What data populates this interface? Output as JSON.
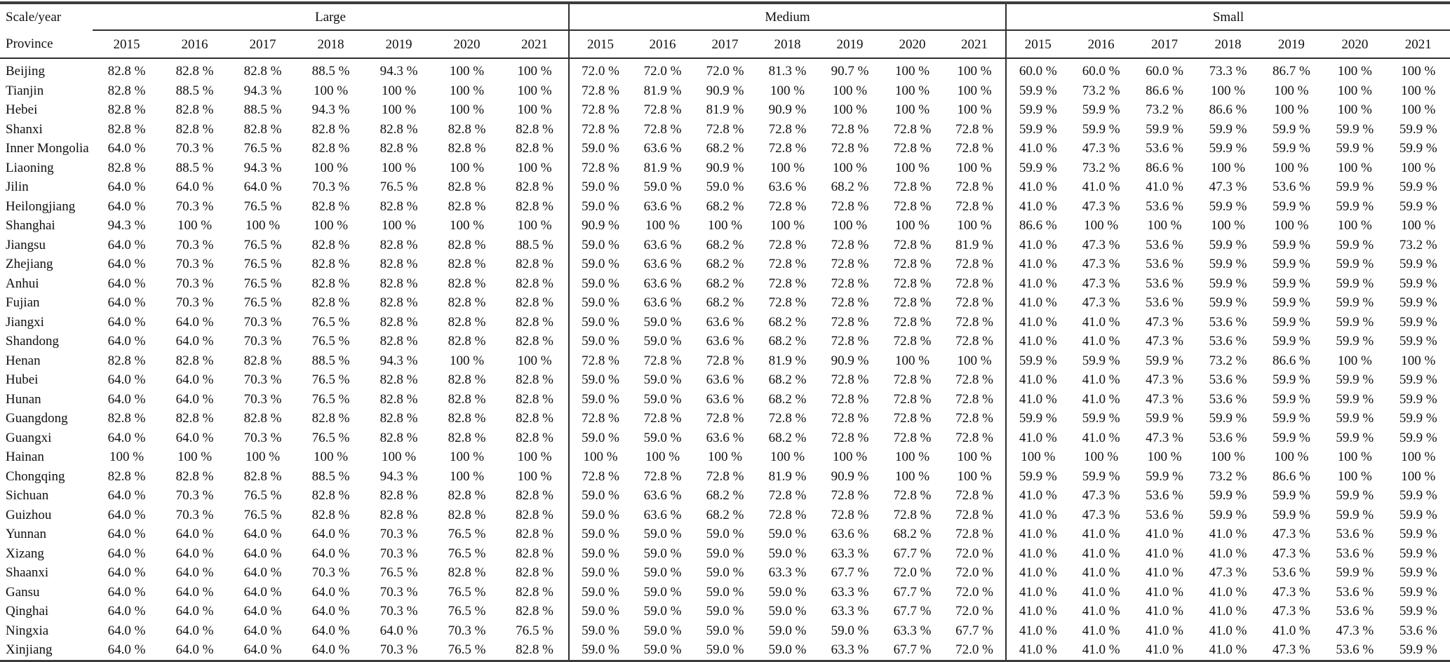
{
  "header": {
    "corner_top": "Scale/year",
    "corner_bottom": "Province",
    "groups": [
      "Large",
      "Medium",
      "Small"
    ],
    "years": [
      "2015",
      "2016",
      "2017",
      "2018",
      "2019",
      "2020",
      "2021"
    ]
  },
  "rows": [
    {
      "province": "Beijing",
      "values": [
        "82.8 %",
        "82.8 %",
        "82.8 %",
        "88.5 %",
        "94.3 %",
        "100 %",
        "100 %",
        "72.0 %",
        "72.0 %",
        "72.0 %",
        "81.3 %",
        "90.7 %",
        "100 %",
        "100 %",
        "60.0 %",
        "60.0 %",
        "60.0 %",
        "73.3 %",
        "86.7 %",
        "100 %",
        "100 %"
      ]
    },
    {
      "province": "Tianjin",
      "values": [
        "82.8 %",
        "88.5 %",
        "94.3 %",
        "100 %",
        "100 %",
        "100 %",
        "100 %",
        "72.8 %",
        "81.9 %",
        "90.9 %",
        "100 %",
        "100 %",
        "100 %",
        "100 %",
        "59.9 %",
        "73.2 %",
        "86.6 %",
        "100 %",
        "100 %",
        "100 %",
        "100 %"
      ]
    },
    {
      "province": "Hebei",
      "values": [
        "82.8 %",
        "82.8 %",
        "88.5 %",
        "94.3 %",
        "100 %",
        "100 %",
        "100 %",
        "72.8 %",
        "72.8 %",
        "81.9 %",
        "90.9 %",
        "100 %",
        "100 %",
        "100 %",
        "59.9 %",
        "59.9 %",
        "73.2 %",
        "86.6 %",
        "100 %",
        "100 %",
        "100 %"
      ]
    },
    {
      "province": "Shanxi",
      "values": [
        "82.8 %",
        "82.8 %",
        "82.8 %",
        "82.8 %",
        "82.8 %",
        "82.8 %",
        "82.8 %",
        "72.8 %",
        "72.8 %",
        "72.8 %",
        "72.8 %",
        "72.8 %",
        "72.8 %",
        "72.8 %",
        "59.9 %",
        "59.9 %",
        "59.9 %",
        "59.9 %",
        "59.9 %",
        "59.9 %",
        "59.9 %"
      ]
    },
    {
      "province": "Inner Mongolia",
      "values": [
        "64.0 %",
        "70.3 %",
        "76.5 %",
        "82.8 %",
        "82.8 %",
        "82.8 %",
        "82.8 %",
        "59.0 %",
        "63.6 %",
        "68.2 %",
        "72.8 %",
        "72.8 %",
        "72.8 %",
        "72.8 %",
        "41.0 %",
        "47.3 %",
        "53.6 %",
        "59.9 %",
        "59.9 %",
        "59.9 %",
        "59.9 %"
      ]
    },
    {
      "province": "Liaoning",
      "values": [
        "82.8 %",
        "88.5 %",
        "94.3 %",
        "100 %",
        "100 %",
        "100 %",
        "100 %",
        "72.8 %",
        "81.9 %",
        "90.9 %",
        "100 %",
        "100 %",
        "100 %",
        "100 %",
        "59.9 %",
        "73.2 %",
        "86.6 %",
        "100 %",
        "100 %",
        "100 %",
        "100 %"
      ]
    },
    {
      "province": "Jilin",
      "values": [
        "64.0 %",
        "64.0 %",
        "64.0 %",
        "70.3 %",
        "76.5 %",
        "82.8 %",
        "82.8 %",
        "59.0 %",
        "59.0 %",
        "59.0 %",
        "63.6 %",
        "68.2 %",
        "72.8 %",
        "72.8 %",
        "41.0 %",
        "41.0 %",
        "41.0 %",
        "47.3 %",
        "53.6 %",
        "59.9 %",
        "59.9 %"
      ]
    },
    {
      "province": "Heilongjiang",
      "values": [
        "64.0 %",
        "70.3 %",
        "76.5 %",
        "82.8 %",
        "82.8 %",
        "82.8 %",
        "82.8 %",
        "59.0 %",
        "63.6 %",
        "68.2 %",
        "72.8 %",
        "72.8 %",
        "72.8 %",
        "72.8 %",
        "41.0 %",
        "47.3 %",
        "53.6 %",
        "59.9 %",
        "59.9 %",
        "59.9 %",
        "59.9 %"
      ]
    },
    {
      "province": "Shanghai",
      "values": [
        "94.3 %",
        "100 %",
        "100 %",
        "100 %",
        "100 %",
        "100 %",
        "100 %",
        "90.9 %",
        "100 %",
        "100 %",
        "100 %",
        "100 %",
        "100 %",
        "100 %",
        "86.6 %",
        "100 %",
        "100 %",
        "100 %",
        "100 %",
        "100 %",
        "100 %"
      ]
    },
    {
      "province": "Jiangsu",
      "values": [
        "64.0 %",
        "70.3 %",
        "76.5 %",
        "82.8 %",
        "82.8 %",
        "82.8 %",
        "88.5 %",
        "59.0 %",
        "63.6 %",
        "68.2 %",
        "72.8 %",
        "72.8 %",
        "72.8 %",
        "81.9 %",
        "41.0 %",
        "47.3 %",
        "53.6 %",
        "59.9 %",
        "59.9 %",
        "59.9 %",
        "73.2 %"
      ]
    },
    {
      "province": "Zhejiang",
      "values": [
        "64.0 %",
        "70.3 %",
        "76.5 %",
        "82.8 %",
        "82.8 %",
        "82.8 %",
        "82.8 %",
        "59.0 %",
        "63.6 %",
        "68.2 %",
        "72.8 %",
        "72.8 %",
        "72.8 %",
        "72.8 %",
        "41.0 %",
        "47.3 %",
        "53.6 %",
        "59.9 %",
        "59.9 %",
        "59.9 %",
        "59.9 %"
      ]
    },
    {
      "province": "Anhui",
      "values": [
        "64.0 %",
        "70.3 %",
        "76.5 %",
        "82.8 %",
        "82.8 %",
        "82.8 %",
        "82.8 %",
        "59.0 %",
        "63.6 %",
        "68.2 %",
        "72.8 %",
        "72.8 %",
        "72.8 %",
        "72.8 %",
        "41.0 %",
        "47.3 %",
        "53.6 %",
        "59.9 %",
        "59.9 %",
        "59.9 %",
        "59.9 %"
      ]
    },
    {
      "province": "Fujian",
      "values": [
        "64.0 %",
        "70.3 %",
        "76.5 %",
        "82.8 %",
        "82.8 %",
        "82.8 %",
        "82.8 %",
        "59.0 %",
        "63.6 %",
        "68.2 %",
        "72.8 %",
        "72.8 %",
        "72.8 %",
        "72.8 %",
        "41.0 %",
        "47.3 %",
        "53.6 %",
        "59.9 %",
        "59.9 %",
        "59.9 %",
        "59.9 %"
      ]
    },
    {
      "province": "Jiangxi",
      "values": [
        "64.0 %",
        "64.0 %",
        "70.3 %",
        "76.5 %",
        "82.8 %",
        "82.8 %",
        "82.8 %",
        "59.0 %",
        "59.0 %",
        "63.6 %",
        "68.2 %",
        "72.8 %",
        "72.8 %",
        "72.8 %",
        "41.0 %",
        "41.0 %",
        "47.3 %",
        "53.6 %",
        "59.9 %",
        "59.9 %",
        "59.9 %"
      ]
    },
    {
      "province": "Shandong",
      "values": [
        "64.0 %",
        "64.0 %",
        "70.3 %",
        "76.5 %",
        "82.8 %",
        "82.8 %",
        "82.8 %",
        "59.0 %",
        "59.0 %",
        "63.6 %",
        "68.2 %",
        "72.8 %",
        "72.8 %",
        "72.8 %",
        "41.0 %",
        "41.0 %",
        "47.3 %",
        "53.6 %",
        "59.9 %",
        "59.9 %",
        "59.9 %"
      ]
    },
    {
      "province": "Henan",
      "values": [
        "82.8 %",
        "82.8 %",
        "82.8 %",
        "88.5 %",
        "94.3 %",
        "100 %",
        "100 %",
        "72.8 %",
        "72.8 %",
        "72.8 %",
        "81.9 %",
        "90.9 %",
        "100 %",
        "100 %",
        "59.9 %",
        "59.9 %",
        "59.9 %",
        "73.2 %",
        "86.6 %",
        "100 %",
        "100 %"
      ]
    },
    {
      "province": "Hubei",
      "values": [
        "64.0 %",
        "64.0 %",
        "70.3 %",
        "76.5 %",
        "82.8 %",
        "82.8 %",
        "82.8 %",
        "59.0 %",
        "59.0 %",
        "63.6 %",
        "68.2 %",
        "72.8 %",
        "72.8 %",
        "72.8 %",
        "41.0 %",
        "41.0 %",
        "47.3 %",
        "53.6 %",
        "59.9 %",
        "59.9 %",
        "59.9 %"
      ]
    },
    {
      "province": "Hunan",
      "values": [
        "64.0 %",
        "64.0 %",
        "70.3 %",
        "76.5 %",
        "82.8 %",
        "82.8 %",
        "82.8 %",
        "59.0 %",
        "59.0 %",
        "63.6 %",
        "68.2 %",
        "72.8 %",
        "72.8 %",
        "72.8 %",
        "41.0 %",
        "41.0 %",
        "47.3 %",
        "53.6 %",
        "59.9 %",
        "59.9 %",
        "59.9 %"
      ]
    },
    {
      "province": "Guangdong",
      "values": [
        "82.8 %",
        "82.8 %",
        "82.8 %",
        "82.8 %",
        "82.8 %",
        "82.8 %",
        "82.8 %",
        "72.8 %",
        "72.8 %",
        "72.8 %",
        "72.8 %",
        "72.8 %",
        "72.8 %",
        "72.8 %",
        "59.9 %",
        "59.9 %",
        "59.9 %",
        "59.9 %",
        "59.9 %",
        "59.9 %",
        "59.9 %"
      ]
    },
    {
      "province": "Guangxi",
      "values": [
        "64.0 %",
        "64.0 %",
        "70.3 %",
        "76.5 %",
        "82.8 %",
        "82.8 %",
        "82.8 %",
        "59.0 %",
        "59.0 %",
        "63.6 %",
        "68.2 %",
        "72.8 %",
        "72.8 %",
        "72.8 %",
        "41.0 %",
        "41.0 %",
        "47.3 %",
        "53.6 %",
        "59.9 %",
        "59.9 %",
        "59.9 %"
      ]
    },
    {
      "province": "Hainan",
      "values": [
        "100 %",
        "100 %",
        "100 %",
        "100 %",
        "100 %",
        "100 %",
        "100 %",
        "100 %",
        "100 %",
        "100 %",
        "100 %",
        "100 %",
        "100 %",
        "100 %",
        "100 %",
        "100 %",
        "100 %",
        "100 %",
        "100 %",
        "100 %",
        "100 %"
      ]
    },
    {
      "province": "Chongqing",
      "values": [
        "82.8 %",
        "82.8 %",
        "82.8 %",
        "88.5 %",
        "94.3 %",
        "100 %",
        "100 %",
        "72.8 %",
        "72.8 %",
        "72.8 %",
        "81.9 %",
        "90.9 %",
        "100 %",
        "100 %",
        "59.9 %",
        "59.9 %",
        "59.9 %",
        "73.2 %",
        "86.6 %",
        "100 %",
        "100 %"
      ]
    },
    {
      "province": "Sichuan",
      "values": [
        "64.0 %",
        "70.3 %",
        "76.5 %",
        "82.8 %",
        "82.8 %",
        "82.8 %",
        "82.8 %",
        "59.0 %",
        "63.6 %",
        "68.2 %",
        "72.8 %",
        "72.8 %",
        "72.8 %",
        "72.8 %",
        "41.0 %",
        "47.3 %",
        "53.6 %",
        "59.9 %",
        "59.9 %",
        "59.9 %",
        "59.9 %"
      ]
    },
    {
      "province": "Guizhou",
      "values": [
        "64.0 %",
        "70.3 %",
        "76.5 %",
        "82.8 %",
        "82.8 %",
        "82.8 %",
        "82.8 %",
        "59.0 %",
        "63.6 %",
        "68.2 %",
        "72.8 %",
        "72.8 %",
        "72.8 %",
        "72.8 %",
        "41.0 %",
        "47.3 %",
        "53.6 %",
        "59.9 %",
        "59.9 %",
        "59.9 %",
        "59.9 %"
      ]
    },
    {
      "province": "Yunnan",
      "values": [
        "64.0 %",
        "64.0 %",
        "64.0 %",
        "64.0 %",
        "70.3 %",
        "76.5 %",
        "82.8 %",
        "59.0 %",
        "59.0 %",
        "59.0 %",
        "59.0 %",
        "63.6 %",
        "68.2 %",
        "72.8 %",
        "41.0 %",
        "41.0 %",
        "41.0 %",
        "41.0 %",
        "47.3 %",
        "53.6 %",
        "59.9 %"
      ]
    },
    {
      "province": "Xizang",
      "values": [
        "64.0 %",
        "64.0 %",
        "64.0 %",
        "64.0 %",
        "70.3 %",
        "76.5 %",
        "82.8 %",
        "59.0 %",
        "59.0 %",
        "59.0 %",
        "59.0 %",
        "63.3 %",
        "67.7 %",
        "72.0 %",
        "41.0 %",
        "41.0 %",
        "41.0 %",
        "41.0 %",
        "47.3 %",
        "53.6 %",
        "59.9 %"
      ]
    },
    {
      "province": "Shaanxi",
      "values": [
        "64.0 %",
        "64.0 %",
        "64.0 %",
        "70.3 %",
        "76.5 %",
        "82.8 %",
        "82.8 %",
        "59.0 %",
        "59.0 %",
        "59.0 %",
        "63.3 %",
        "67.7 %",
        "72.0 %",
        "72.0 %",
        "41.0 %",
        "41.0 %",
        "41.0 %",
        "47.3 %",
        "53.6 %",
        "59.9 %",
        "59.9 %"
      ]
    },
    {
      "province": "Gansu",
      "values": [
        "64.0 %",
        "64.0 %",
        "64.0 %",
        "64.0 %",
        "70.3 %",
        "76.5 %",
        "82.8 %",
        "59.0 %",
        "59.0 %",
        "59.0 %",
        "59.0 %",
        "63.3 %",
        "67.7 %",
        "72.0 %",
        "41.0 %",
        "41.0 %",
        "41.0 %",
        "41.0 %",
        "47.3 %",
        "53.6 %",
        "59.9 %"
      ]
    },
    {
      "province": "Qinghai",
      "values": [
        "64.0 %",
        "64.0 %",
        "64.0 %",
        "64.0 %",
        "70.3 %",
        "76.5 %",
        "82.8 %",
        "59.0 %",
        "59.0 %",
        "59.0 %",
        "59.0 %",
        "63.3 %",
        "67.7 %",
        "72.0 %",
        "41.0 %",
        "41.0 %",
        "41.0 %",
        "41.0 %",
        "47.3 %",
        "53.6 %",
        "59.9 %"
      ]
    },
    {
      "province": "Ningxia",
      "values": [
        "64.0 %",
        "64.0 %",
        "64.0 %",
        "64.0 %",
        "64.0 %",
        "70.3 %",
        "76.5 %",
        "59.0 %",
        "59.0 %",
        "59.0 %",
        "59.0 %",
        "59.0 %",
        "63.3 %",
        "67.7 %",
        "41.0 %",
        "41.0 %",
        "41.0 %",
        "41.0 %",
        "41.0 %",
        "47.3 %",
        "53.6 %"
      ]
    },
    {
      "province": "Xinjiang",
      "values": [
        "64.0 %",
        "64.0 %",
        "64.0 %",
        "64.0 %",
        "70.3 %",
        "76.5 %",
        "82.8 %",
        "59.0 %",
        "59.0 %",
        "59.0 %",
        "59.0 %",
        "63.3 %",
        "67.7 %",
        "72.0 %",
        "41.0 %",
        "41.0 %",
        "41.0 %",
        "41.0 %",
        "47.3 %",
        "53.6 %",
        "59.9 %"
      ]
    }
  ]
}
